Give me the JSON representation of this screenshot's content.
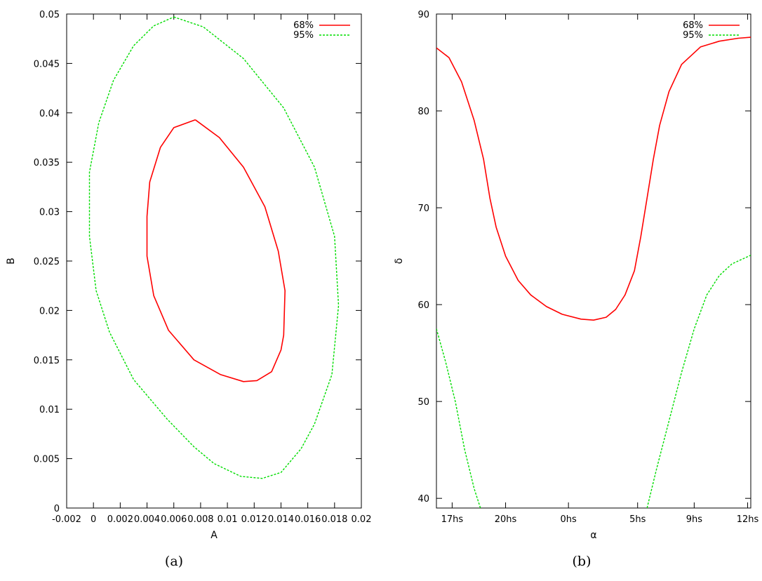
{
  "chart_data": [
    {
      "type": "line",
      "caption": "(a)",
      "xlabel": "A",
      "ylabel": "B",
      "xlim": [
        -0.002,
        0.02
      ],
      "ylim": [
        0,
        0.05
      ],
      "x_ticks": [
        -0.002,
        0,
        0.002,
        0.004,
        0.006,
        0.008,
        0.01,
        0.012,
        0.014,
        0.016,
        0.018,
        0.02
      ],
      "x_tick_labels": [
        "-0.002",
        "0",
        "0.002",
        "0.004",
        "0.006",
        "0.008",
        "0.01",
        "0.012",
        "0.014",
        "0.016",
        "0.018",
        "0.02"
      ],
      "y_ticks": [
        0,
        0.005,
        0.01,
        0.015,
        0.02,
        0.025,
        0.03,
        0.035,
        0.04,
        0.045,
        0.05
      ],
      "y_tick_labels": [
        "0",
        "0.005",
        "0.01",
        "0.015",
        "0.02",
        "0.025",
        "0.03",
        "0.035",
        "0.04",
        "0.045",
        "0.05"
      ],
      "grid": false,
      "legend": "top-right",
      "series": [
        {
          "name": "68%",
          "color": "#ff0000",
          "style": "solid",
          "points": [
            [
              0.0076,
              0.0393
            ],
            [
              0.0094,
              0.0375
            ],
            [
              0.0112,
              0.0345
            ],
            [
              0.0128,
              0.0305
            ],
            [
              0.0138,
              0.026
            ],
            [
              0.0143,
              0.022
            ],
            [
              0.0142,
              0.0175
            ],
            [
              0.014,
              0.016
            ],
            [
              0.0133,
              0.0138
            ],
            [
              0.0122,
              0.0129
            ],
            [
              0.0112,
              0.0128
            ],
            [
              0.0095,
              0.0135
            ],
            [
              0.0075,
              0.015
            ],
            [
              0.0056,
              0.018
            ],
            [
              0.0045,
              0.0215
            ],
            [
              0.004,
              0.0255
            ],
            [
              0.004,
              0.0295
            ],
            [
              0.0042,
              0.033
            ],
            [
              0.005,
              0.0365
            ],
            [
              0.006,
              0.0385
            ],
            [
              0.0076,
              0.0393
            ]
          ]
        },
        {
          "name": "95%",
          "color": "#00dd00",
          "style": "dashed",
          "points": [
            [
              0.006,
              0.0497
            ],
            [
              0.0082,
              0.0487
            ],
            [
              0.0112,
              0.0455
            ],
            [
              0.0142,
              0.0405
            ],
            [
              0.0165,
              0.0345
            ],
            [
              0.018,
              0.0275
            ],
            [
              0.0183,
              0.0205
            ],
            [
              0.0178,
              0.0135
            ],
            [
              0.0165,
              0.0085
            ],
            [
              0.0155,
              0.006
            ],
            [
              0.014,
              0.0036
            ],
            [
              0.0126,
              0.003
            ],
            [
              0.011,
              0.0032
            ],
            [
              0.009,
              0.0045
            ],
            [
              0.0075,
              0.0062
            ],
            [
              0.0055,
              0.009
            ],
            [
              0.003,
              0.013
            ],
            [
              0.0012,
              0.0178
            ],
            [
              0.0002,
              0.022
            ],
            [
              -0.0003,
              0.0275
            ],
            [
              -0.0003,
              0.034
            ],
            [
              0.0004,
              0.039
            ],
            [
              0.0015,
              0.0433
            ],
            [
              0.003,
              0.0468
            ],
            [
              0.0045,
              0.0488
            ],
            [
              0.006,
              0.0497
            ]
          ]
        }
      ]
    },
    {
      "type": "line",
      "caption": "(b)",
      "xlabel": "α",
      "ylabel": "δ",
      "xlim": [
        0,
        100
      ],
      "ylim": [
        39,
        90
      ],
      "x_ticks": [
        5,
        22,
        42,
        64,
        82,
        99
      ],
      "x_tick_labels": [
        "17hs",
        "20hs",
        "0hs",
        "5hs",
        "9hs",
        "12hs"
      ],
      "y_ticks": [
        40,
        50,
        60,
        70,
        80,
        90
      ],
      "y_tick_labels": [
        "40",
        "50",
        "60",
        "70",
        "80",
        "90"
      ],
      "grid": false,
      "legend": "top-right",
      "series": [
        {
          "name": "68%",
          "color": "#ff0000",
          "style": "solid",
          "points": [
            [
              0,
              86.5
            ],
            [
              4,
              85.5
            ],
            [
              8,
              83
            ],
            [
              12,
              79
            ],
            [
              15,
              75
            ],
            [
              17,
              71
            ],
            [
              19,
              68
            ],
            [
              22,
              65
            ],
            [
              26,
              62.5
            ],
            [
              30,
              61
            ],
            [
              35,
              59.8
            ],
            [
              40,
              59
            ],
            [
              46,
              58.5
            ],
            [
              50,
              58.4
            ],
            [
              54,
              58.7
            ],
            [
              57,
              59.5
            ],
            [
              60,
              61
            ],
            [
              63,
              63.5
            ],
            [
              65,
              67
            ],
            [
              67,
              71
            ],
            [
              69,
              75
            ],
            [
              71,
              78.5
            ],
            [
              74,
              82
            ],
            [
              78,
              84.8
            ],
            [
              84,
              86.6
            ],
            [
              90,
              87.2
            ],
            [
              96,
              87.5
            ],
            [
              100,
              87.6
            ]
          ]
        },
        {
          "name": "95%",
          "color": "#00dd00",
          "style": "dashed",
          "points": [
            [
              0,
              57.5
            ],
            [
              3,
              54
            ],
            [
              6,
              50
            ],
            [
              9,
              45
            ],
            [
              12,
              41
            ],
            [
              14,
              39
            ]
          ]
        },
        {
          "name": "95%",
          "color": "#00dd00",
          "style": "dashed",
          "points": [
            [
              67,
              39
            ],
            [
              70,
              43
            ],
            [
              74,
              48
            ],
            [
              78,
              53
            ],
            [
              82,
              57.5
            ],
            [
              86,
              61
            ],
            [
              90,
              63
            ],
            [
              94,
              64.2
            ],
            [
              100,
              65.1
            ]
          ]
        }
      ]
    }
  ]
}
